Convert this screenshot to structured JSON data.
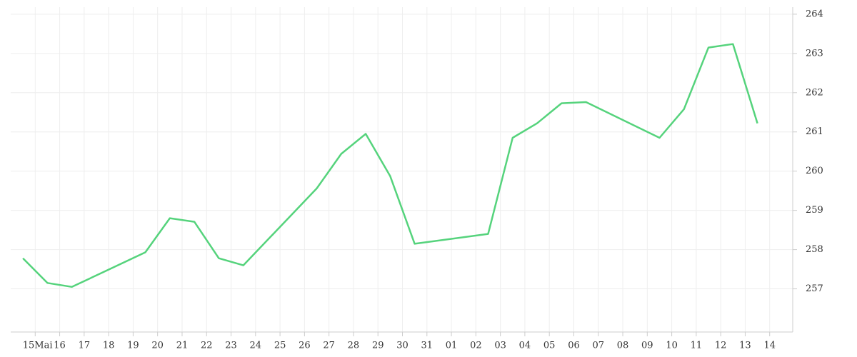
{
  "chart_data": {
    "type": "line",
    "month_label": "Mai",
    "x": [
      -0.5,
      0.5,
      1.5,
      4.5,
      5.5,
      6.5,
      7.5,
      8.5,
      11.5,
      12.5,
      13.5,
      14.5,
      15.5,
      18.5,
      19.5,
      20.5,
      21.5,
      22.5,
      25.5,
      26.5,
      27.5,
      28.5,
      29.5
    ],
    "series": [
      {
        "color": "#55d37c",
        "values": [
          257.78,
          257.15,
          257.05,
          257.93,
          258.8,
          258.71,
          257.78,
          257.6,
          259.56,
          260.44,
          260.95,
          259.87,
          258.15,
          258.4,
          260.85,
          261.22,
          261.73,
          261.76,
          260.85,
          261.58,
          263.15,
          263.24,
          261.22
        ]
      }
    ],
    "xlim": [
      -1,
      31
    ],
    "xticks": [
      {
        "value": 0,
        "label": "15"
      },
      {
        "value": 1,
        "label": "16"
      },
      {
        "value": 2,
        "label": "17"
      },
      {
        "value": 3,
        "label": "18"
      },
      {
        "value": 4,
        "label": "19"
      },
      {
        "value": 5,
        "label": "20"
      },
      {
        "value": 6,
        "label": "21"
      },
      {
        "value": 7,
        "label": "22"
      },
      {
        "value": 8,
        "label": "23"
      },
      {
        "value": 9,
        "label": "24"
      },
      {
        "value": 10,
        "label": "25"
      },
      {
        "value": 11,
        "label": "26"
      },
      {
        "value": 12,
        "label": "27"
      },
      {
        "value": 13,
        "label": "28"
      },
      {
        "value": 14,
        "label": "29"
      },
      {
        "value": 15,
        "label": "30"
      },
      {
        "value": 16,
        "label": "31"
      },
      {
        "value": 17,
        "label": "01"
      },
      {
        "value": 18,
        "label": "02"
      },
      {
        "value": 19,
        "label": "03"
      },
      {
        "value": 20,
        "label": "04"
      },
      {
        "value": 21,
        "label": "05"
      },
      {
        "value": 22,
        "label": "06"
      },
      {
        "value": 23,
        "label": "07"
      },
      {
        "value": 24,
        "label": "08"
      },
      {
        "value": 25,
        "label": "09"
      },
      {
        "value": 26,
        "label": "10"
      },
      {
        "value": 27,
        "label": "11"
      },
      {
        "value": 28,
        "label": "12"
      },
      {
        "value": 29,
        "label": "13"
      },
      {
        "value": 30,
        "label": "14"
      }
    ],
    "ylim": [
      255.9,
      264.18
    ],
    "yticks": [
      257,
      258,
      259,
      260,
      261,
      262,
      263,
      264
    ],
    "grid": true
  }
}
